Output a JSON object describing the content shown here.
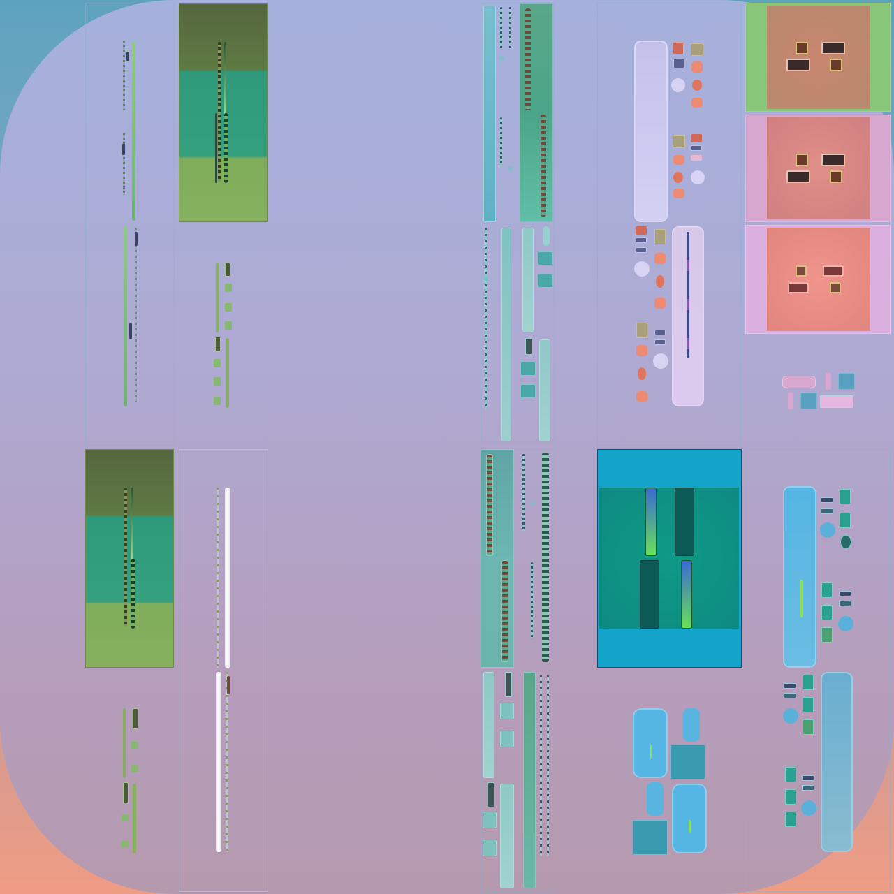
{
  "canvas": {
    "background_top": "#5ea3bd",
    "background_bottom": "#ef9c84",
    "inner_shape_top": "#a5b1dc",
    "inner_shape_bottom": "#b59aae"
  },
  "palette": {
    "olive_dark": "#56683f",
    "green_mid": "#2e9a7c",
    "green_light": "#7cad5a",
    "teal": "#6fb8bd",
    "cyan": "#1aa4c8",
    "lavender": "#c9c8ee",
    "salmon": "#ec8a72",
    "pink_card": "#d7a7cf",
    "red_card": "#e48a86",
    "sky_blue": "#5db3e1"
  },
  "icons": [
    "level-bar-icon",
    "swatch-icon",
    "bucket-icon",
    "toggle-icon",
    "circle-knob-icon"
  ]
}
